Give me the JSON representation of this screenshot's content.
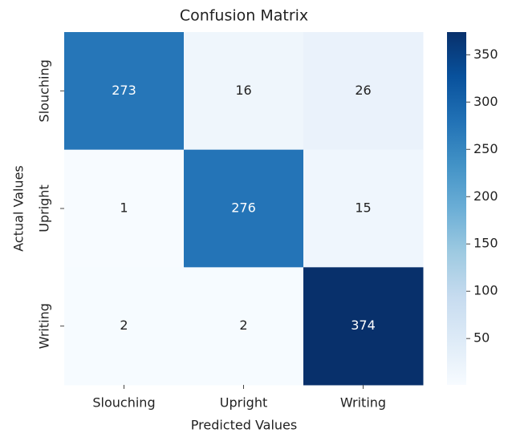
{
  "chart_data": {
    "type": "heatmap",
    "title": "Confusion Matrix",
    "xlabel": "Predicted Values",
    "ylabel": "Actual Values",
    "x_categories": [
      "Slouching",
      "Upright",
      "Writing"
    ],
    "y_categories": [
      "Slouching",
      "Upright",
      "Writing"
    ],
    "values": [
      [
        273,
        16,
        26
      ],
      [
        1,
        276,
        15
      ],
      [
        2,
        2,
        374
      ]
    ],
    "colormap": "Blues",
    "colorbar_ticks": [
      50,
      100,
      150,
      200,
      250,
      300,
      350
    ]
  }
}
